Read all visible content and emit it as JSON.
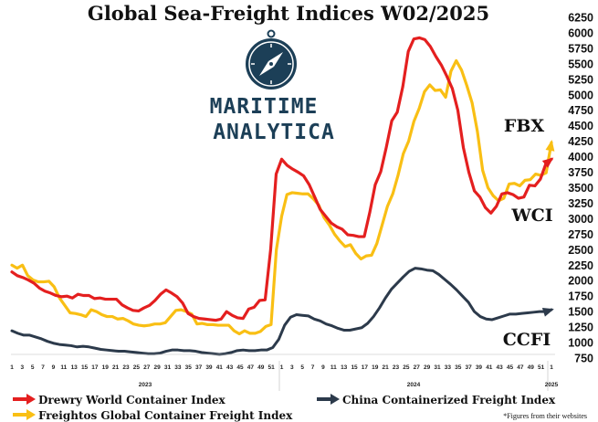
{
  "logo": {
    "line1": "MARITIME",
    "line2": "ANALYTICA"
  },
  "footnote": "*Figures from their websites",
  "colors": {
    "drewry": "#e41f1f",
    "freightos": "#f9bf14",
    "ccfi": "#2c3a4b"
  },
  "chart_data": {
    "type": "line",
    "title": "Global Sea-Freight Indices W02/2025",
    "ylim": [
      750,
      6250
    ],
    "yticks": [
      750,
      1000,
      1250,
      1500,
      1750,
      2000,
      2250,
      2500,
      2750,
      3000,
      3250,
      3500,
      3750,
      4000,
      4250,
      4500,
      4750,
      5000,
      5250,
      5500,
      5750,
      6000,
      6250
    ],
    "y_axis_side": "right",
    "x_tick_labels": [
      "1",
      "3",
      "5",
      "7",
      "9",
      "11",
      "13",
      "15",
      "17",
      "19",
      "21",
      "23",
      "25",
      "27",
      "29",
      "31",
      "33",
      "35",
      "37",
      "39",
      "41",
      "43",
      "45",
      "47",
      "49",
      "51",
      "1",
      "3",
      "5",
      "7",
      "9",
      "11",
      "13",
      "15",
      "17",
      "19",
      "21",
      "23",
      "25",
      "27",
      "29",
      "31",
      "33",
      "35",
      "37",
      "39",
      "41",
      "43",
      "45",
      "47",
      "49",
      "51",
      "1"
    ],
    "year_labels": [
      "2023",
      "2024",
      "2025"
    ],
    "end_labels": {
      "freightos": "FBX",
      "drewry": "WCI",
      "ccfi": "CCFI"
    },
    "series": [
      {
        "key": "drewry",
        "name": "Drewry World Container Index",
        "values": [
          2140,
          2080,
          2050,
          2010,
          1960,
          1880,
          1830,
          1800,
          1760,
          1740,
          1750,
          1720,
          1780,
          1760,
          1760,
          1710,
          1720,
          1700,
          1700,
          1700,
          1610,
          1560,
          1520,
          1510,
          1560,
          1600,
          1680,
          1780,
          1850,
          1800,
          1740,
          1640,
          1470,
          1420,
          1390,
          1380,
          1370,
          1360,
          1380,
          1500,
          1440,
          1400,
          1390,
          1540,
          1570,
          1680,
          1690,
          2500,
          3720,
          3960,
          3860,
          3800,
          3750,
          3690,
          3550,
          3350,
          3150,
          3040,
          2930,
          2870,
          2830,
          2740,
          2730,
          2710,
          2710,
          3100,
          3550,
          3760,
          4150,
          4580,
          4720,
          5130,
          5700,
          5900,
          5920,
          5890,
          5780,
          5620,
          5480,
          5300,
          5100,
          4750,
          4150,
          3750,
          3450,
          3350,
          3180,
          3090,
          3200,
          3400,
          3420,
          3390,
          3330,
          3350,
          3540,
          3530,
          3640,
          3890,
          3960
        ]
      },
      {
        "key": "freightos",
        "name": "Freightos Global Container Freight Index",
        "values": [
          2250,
          2200,
          2250,
          2080,
          2010,
          1980,
          1980,
          1990,
          1900,
          1720,
          1600,
          1480,
          1470,
          1450,
          1420,
          1530,
          1500,
          1450,
          1420,
          1420,
          1380,
          1390,
          1350,
          1300,
          1280,
          1270,
          1280,
          1300,
          1300,
          1320,
          1420,
          1520,
          1530,
          1500,
          1460,
          1300,
          1310,
          1290,
          1290,
          1280,
          1280,
          1280,
          1190,
          1140,
          1190,
          1150,
          1150,
          1180,
          1260,
          1290,
          2500,
          3040,
          3390,
          3420,
          3410,
          3400,
          3400,
          3320,
          3220,
          3020,
          2900,
          2750,
          2640,
          2550,
          2580,
          2440,
          2350,
          2400,
          2410,
          2600,
          2900,
          3200,
          3400,
          3700,
          4050,
          4250,
          4570,
          4780,
          5050,
          5160,
          5070,
          5080,
          4960,
          5380,
          5550,
          5400,
          5150,
          4870,
          4410,
          3780,
          3500,
          3370,
          3290,
          3330,
          3560,
          3570,
          3530,
          3620,
          3630,
          3720,
          3700,
          3740,
          4230
        ]
      },
      {
        "key": "ccfi",
        "name": "China Containerized Freight Index",
        "values": [
          1190,
          1150,
          1120,
          1120,
          1090,
          1060,
          1020,
          990,
          970,
          960,
          950,
          930,
          940,
          930,
          910,
          890,
          880,
          870,
          860,
          860,
          850,
          840,
          830,
          820,
          820,
          830,
          860,
          880,
          880,
          870,
          870,
          860,
          840,
          830,
          820,
          810,
          820,
          840,
          870,
          880,
          870,
          870,
          880,
          880,
          920,
          1050,
          1280,
          1410,
          1450,
          1440,
          1430,
          1380,
          1350,
          1300,
          1270,
          1230,
          1200,
          1200,
          1220,
          1240,
          1310,
          1420,
          1560,
          1720,
          1860,
          1960,
          2060,
          2150,
          2200,
          2190,
          2170,
          2160,
          2100,
          2020,
          1940,
          1850,
          1750,
          1650,
          1500,
          1420,
          1380,
          1370,
          1400,
          1430,
          1460,
          1460,
          1470,
          1480,
          1490,
          1500,
          1500,
          1530
        ]
      }
    ],
    "legend": [
      {
        "key": "drewry",
        "label": "Drewry World Container Index"
      },
      {
        "key": "ccfi",
        "label": "China Containerized Freight Index"
      },
      {
        "key": "freightos",
        "label": "Freightos Global Container Freight Index"
      }
    ],
    "grid": false,
    "legend_position": "bottom"
  }
}
